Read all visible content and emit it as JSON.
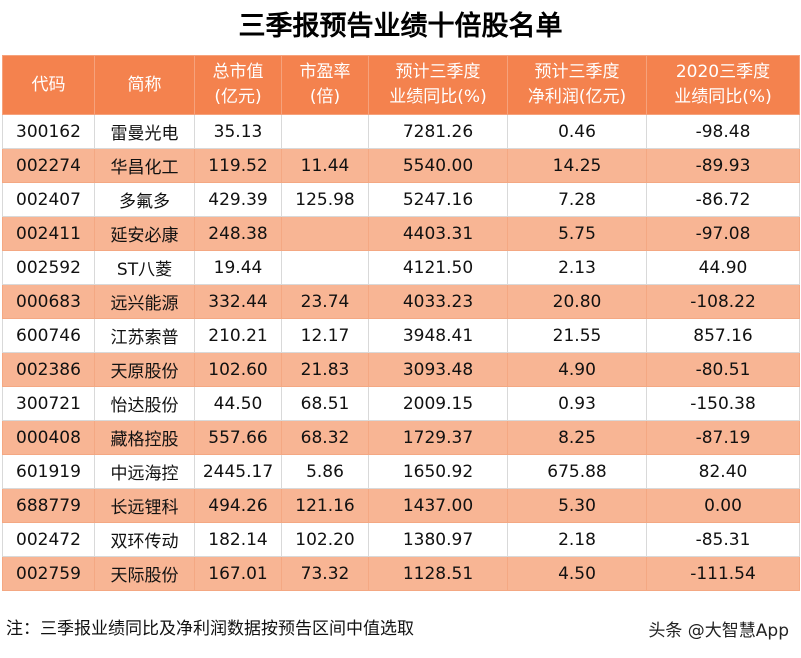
{
  "title": "三季报预告业绩十倍股名单",
  "columns": [
    "代码",
    "简称",
    "总市值\n(亿元)",
    "市盈率\n(倍)",
    "预计三季度\n业绩同比(%)",
    "预计三季度\n净利润(亿元)",
    "2020三季度\n业绩同比(%)"
  ],
  "rows": [
    [
      "300162",
      "雷曼光电",
      "35.13",
      "",
      "7281.26",
      "0.46",
      "-98.48"
    ],
    [
      "002274",
      "华昌化工",
      "119.52",
      "11.44",
      "5540.00",
      "14.25",
      "-89.93"
    ],
    [
      "002407",
      "多氟多",
      "429.39",
      "125.98",
      "5247.16",
      "7.28",
      "-86.72"
    ],
    [
      "002411",
      "延安必康",
      "248.38",
      "",
      "4403.31",
      "5.75",
      "-97.08"
    ],
    [
      "002592",
      "ST八菱",
      "19.44",
      "",
      "4121.50",
      "2.13",
      "44.90"
    ],
    [
      "000683",
      "远兴能源",
      "332.44",
      "23.74",
      "4033.23",
      "20.80",
      "-108.22"
    ],
    [
      "600746",
      "江苏索普",
      "210.21",
      "12.17",
      "3948.41",
      "21.55",
      "857.16"
    ],
    [
      "002386",
      "天原股份",
      "102.60",
      "21.83",
      "3093.48",
      "4.90",
      "-80.51"
    ],
    [
      "300721",
      "怡达股份",
      "44.50",
      "68.51",
      "2009.15",
      "0.93",
      "-150.38"
    ],
    [
      "000408",
      "藏格控股",
      "557.66",
      "68.32",
      "1729.37",
      "8.25",
      "-87.19"
    ],
    [
      "601919",
      "中远海控",
      "2445.17",
      "5.86",
      "1650.92",
      "675.88",
      "82.40"
    ],
    [
      "688779",
      "长远锂科",
      "494.26",
      "121.16",
      "1437.00",
      "5.30",
      "0.00"
    ],
    [
      "002472",
      "双环传动",
      "182.14",
      "102.20",
      "1380.97",
      "2.18",
      "-85.31"
    ],
    [
      "002759",
      "天际股份",
      "167.01",
      "73.32",
      "1128.51",
      "4.50",
      "-111.54"
    ]
  ],
  "note": "注：三季报业绩同比及净利润数据按预告区间中值选取",
  "watermark": "头条 @大智慧App",
  "colors": {
    "header_bg": "#f4824e",
    "stripe_bg": "#f8b594",
    "row_bg": "#ffffff"
  }
}
